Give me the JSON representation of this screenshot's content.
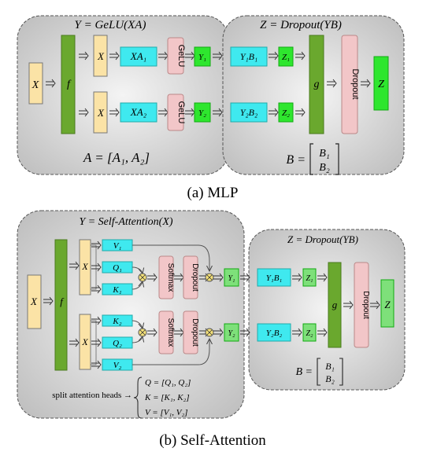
{
  "mlp": {
    "panel_left_title": "Y = GeLU(XA)",
    "panel_right_title": "Z = Dropout(YB)",
    "input": "X",
    "f": "f",
    "x1": "X",
    "xa1": "XA₁",
    "gelu1": "GeLU",
    "y1": "Y₁",
    "x2": "X",
    "xa2": "XA₂",
    "gelu2": "GeLU",
    "y2": "Y₂",
    "yb1": "Y₁B₁",
    "z1": "Z₁",
    "yb2": "Y₂B₂",
    "z2": "Z₂",
    "g": "g",
    "dropout": "Dropout",
    "z": "Z",
    "formula_a": "A = [A₁, A₂]",
    "formula_b_lhs": "B =",
    "formula_b_top": "B₁",
    "formula_b_bottom": "B₂",
    "caption": "(a) MLP"
  },
  "attn": {
    "panel_left_title": "Y = Self-Attention(X)",
    "panel_right_title": "Z = Dropout(YB)",
    "input": "X",
    "f": "f",
    "x1": "X",
    "v1": "V₁",
    "q1": "Q₁",
    "k1": "K₁",
    "softmax1": "Softmax",
    "dropout1": "Dropout",
    "y1": "Y₁",
    "x2": "X",
    "k2": "K₂",
    "q2": "Q₂",
    "v2": "V₂",
    "softmax2": "Softmax",
    "dropout2": "Dropout",
    "y2": "Y₂",
    "yb1": "Y₁B₁",
    "z1": "Z₁",
    "yb2": "Y₂B₂",
    "z2": "Z₂",
    "g": "g",
    "dropout": "Dropout",
    "z": "Z",
    "formula_b_lhs": "B =",
    "formula_b_top": "B₁",
    "formula_b_bottom": "B₂",
    "split_label": "split attention heads →",
    "split_q": "Q = [Q₁, Q₂]",
    "split_k": "K = [K₁, K₂]",
    "split_v": "V = [V₁, V₂]",
    "caption": "(b) Self-Attention"
  },
  "colors": {
    "yellow": "#fbe3a6",
    "dark_green": "#6aa82e",
    "cyan": "#3fe9ef",
    "pink": "#f2c6c8",
    "bright_green": "#2ee62e",
    "light_green": "#7ee07a",
    "panel_gray": "#d2d2d2"
  }
}
